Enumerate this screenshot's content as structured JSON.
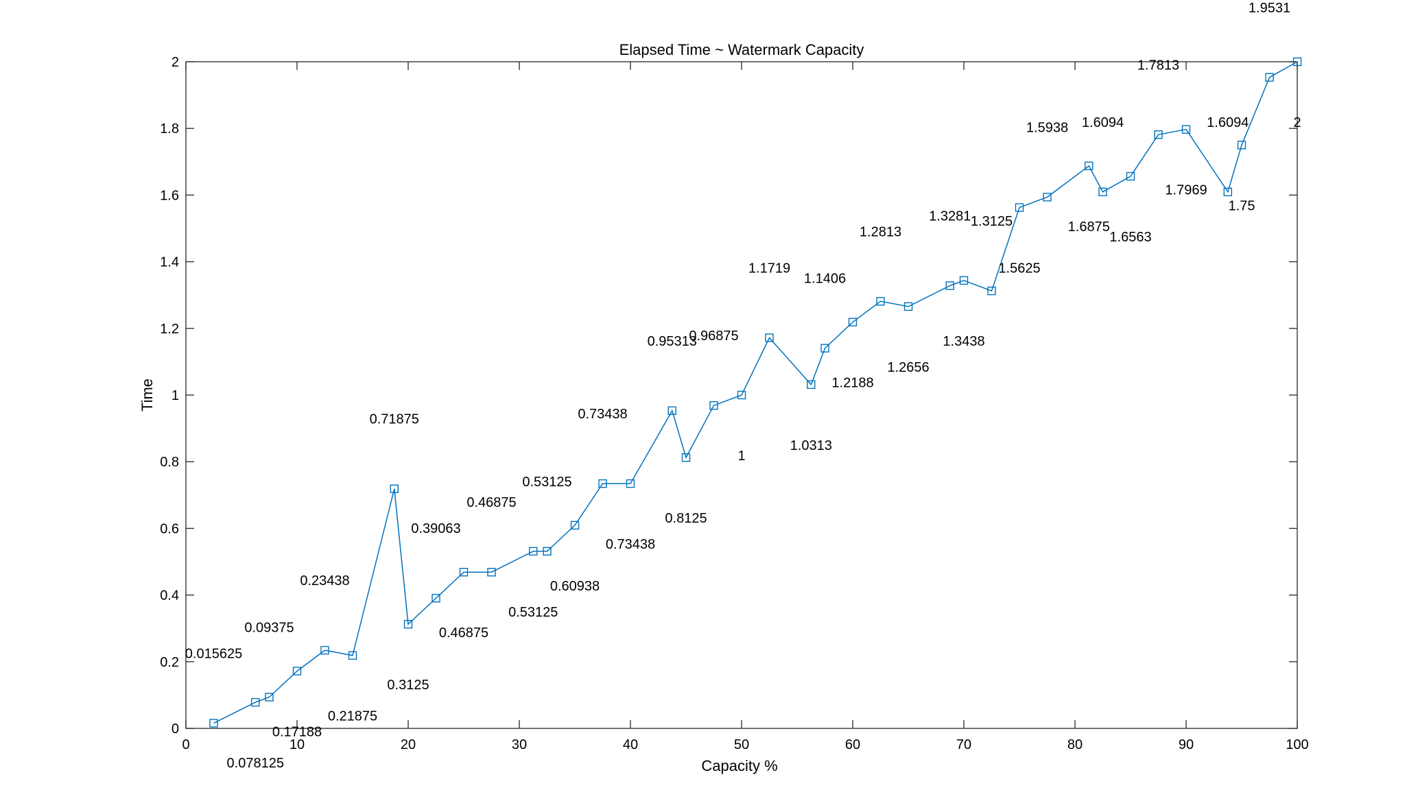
{
  "chart_data": {
    "type": "line",
    "title": "Elapsed Time ~ Watermark Capacity",
    "xlabel": "Capacity %",
    "ylabel": "Time",
    "xlim": [
      0,
      100
    ],
    "ylim": [
      0,
      2
    ],
    "xticks": [
      0,
      10,
      20,
      30,
      40,
      50,
      60,
      70,
      80,
      90,
      100
    ],
    "yticks": [
      0,
      0.2,
      0.4,
      0.6,
      0.8,
      1,
      1.2,
      1.4,
      1.6,
      1.8,
      2
    ],
    "xtick_labels": [
      "0",
      "10",
      "20",
      "30",
      "40",
      "50",
      "60",
      "70",
      "80",
      "90",
      "100"
    ],
    "ytick_labels": [
      "0",
      "0.2",
      "0.4",
      "0.6",
      "0.8",
      "1",
      "1.2",
      "1.4",
      "1.6",
      "1.8",
      "2"
    ],
    "grid": false,
    "line_color": "#0072BD",
    "marker": "square",
    "series": [
      {
        "x": [
          2.5,
          6.25,
          7.5,
          10,
          12.5,
          15,
          18.75,
          20,
          22.5,
          25,
          27.5,
          31.25,
          32.5,
          35,
          37.5,
          40,
          43.75,
          45,
          47.5,
          50,
          52.5,
          56.25,
          57.5,
          60,
          62.5,
          65,
          68.75,
          70,
          72.5,
          75,
          77.5,
          81.25,
          82.5,
          85,
          87.5,
          90,
          93.75,
          95,
          97.5,
          100
        ],
        "values": [
          0.015625,
          0.078125,
          0.09375,
          0.17188,
          0.23438,
          0.21875,
          0.71875,
          0.3125,
          0.39063,
          0.46875,
          0.46875,
          0.53125,
          0.53125,
          0.60938,
          0.73438,
          0.73438,
          0.95313,
          0.8125,
          0.96875,
          1,
          1.1719,
          1.0313,
          1.1406,
          1.2188,
          1.2813,
          1.2656,
          1.3281,
          1.3438,
          1.3125,
          1.5625,
          1.5938,
          1.6875,
          1.6094,
          1.6563,
          1.7813,
          1.7969,
          1.6094,
          1.75,
          1.9531,
          2
        ]
      }
    ],
    "annotations": [
      "0.015625",
      "0.078125",
      "0.09375",
      "0.17188",
      "0.23438",
      "0.21875",
      "0.71875",
      "0.3125",
      "0.39063",
      "0.46875",
      "0.46875",
      "0.53125",
      "0.53125",
      "0.60938",
      "0.73438",
      "0.73438",
      "0.95313",
      "0.8125",
      "0.96875",
      "1",
      "1.1719",
      "1.0313",
      "1.1406",
      "1.2188",
      "1.2813",
      "1.2656",
      "1.3281",
      "1.3438",
      "1.3125",
      "1.5625",
      "1.5938",
      "1.6875",
      "1.6094",
      "1.6563",
      "1.7813",
      "1.7969",
      "1.6094",
      "1.75",
      "1.9531",
      "2"
    ]
  }
}
